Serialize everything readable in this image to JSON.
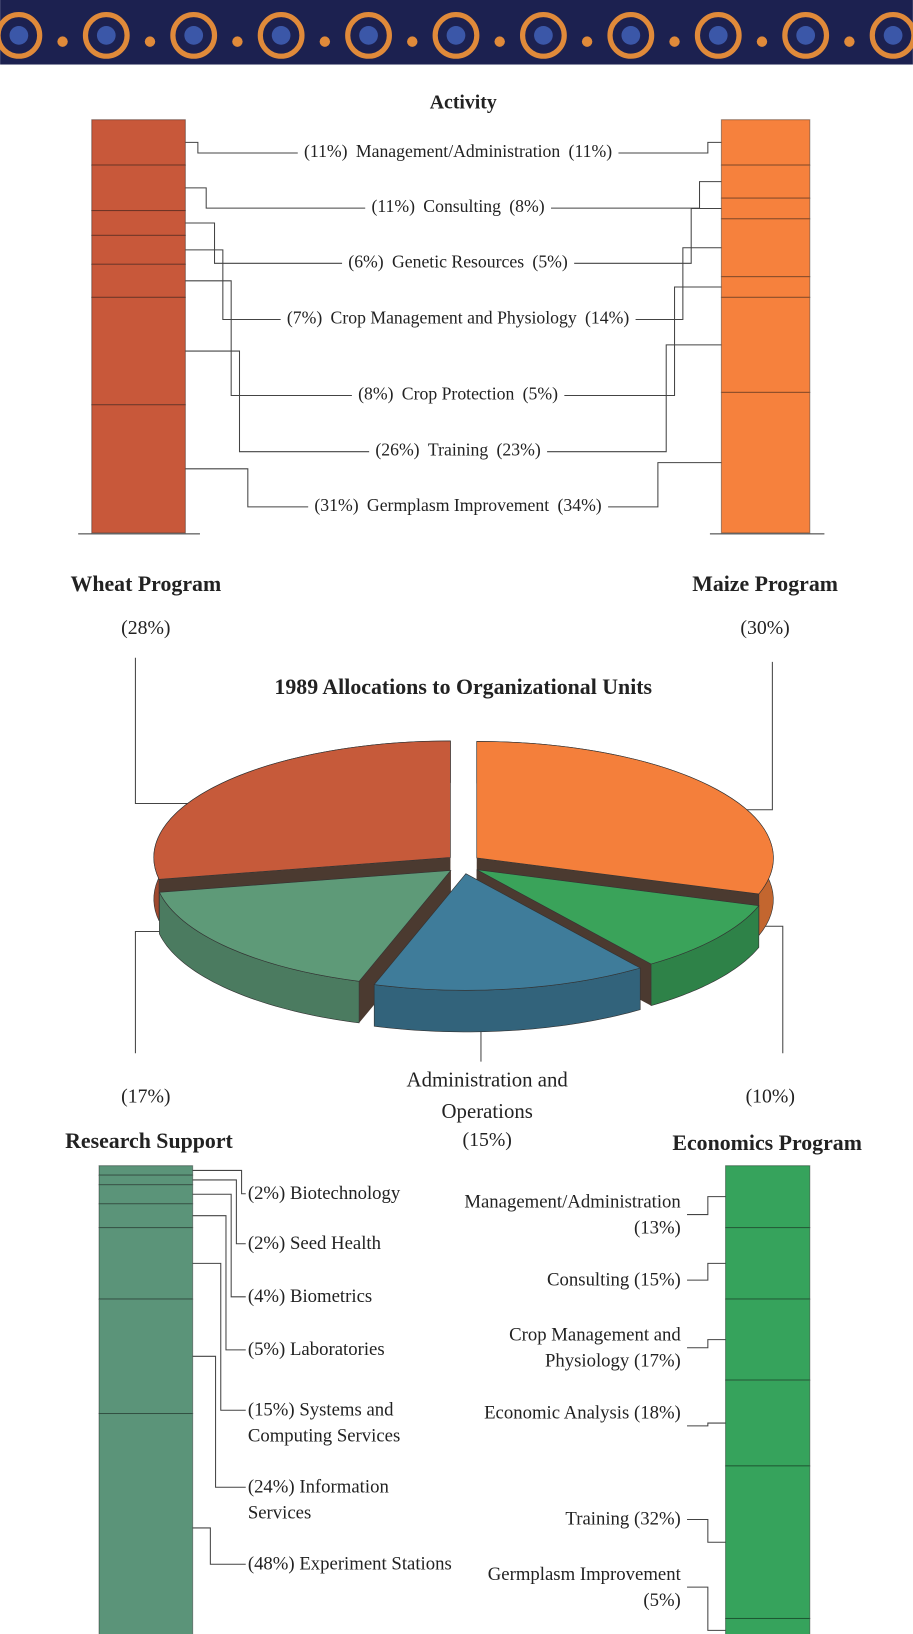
{
  "chart_data": [
    {
      "type": "stacked_column",
      "title": "Activity",
      "categories": [
        "Management/Administration",
        "Consulting",
        "Genetic Resources",
        "Crop Management and Physiology",
        "Crop Protection",
        "Training",
        "Germplasm Improvement"
      ],
      "series": [
        {
          "color": "#c8583a",
          "values": [
            11,
            11,
            6,
            7,
            8,
            26,
            31
          ],
          "value_labels": [
            "(11%)",
            "(11%)",
            "(6%)",
            "(7%)",
            "(8%)",
            "(26%)",
            "(31%)"
          ]
        },
        {
          "color": "#f6813d",
          "values": [
            11,
            8,
            5,
            14,
            5,
            23,
            34
          ],
          "value_labels": [
            "(11%)",
            "(8%)",
            "(5%)",
            "(14%)",
            "(5%)",
            "(23%)",
            "(34%)"
          ]
        }
      ]
    },
    {
      "type": "pie",
      "title": "1989 Allocations to Organizational Units",
      "categories": [
        "Maize Program",
        "Economics Program",
        "Administration and Operations",
        "Research Support",
        "Wheat Program"
      ],
      "values": [
        30,
        10,
        15,
        17,
        28
      ],
      "value_labels": [
        "(30%)",
        "(10%)",
        "(15%)",
        "(17%)",
        "(28%)"
      ],
      "colors": [
        "#f47f3b",
        "#3aa35a",
        "#3f7c9a",
        "#5e9a78",
        "#c65a3a"
      ]
    },
    {
      "type": "stacked_column",
      "categories": [
        "Biotechnology",
        "Seed Health",
        "Biometrics",
        "Laboratories",
        "Systems and Computing Services",
        "Information Services",
        "Experiment Stations"
      ],
      "values": [
        2,
        2,
        4,
        5,
        15,
        24,
        48
      ],
      "value_labels": [
        "(2%)",
        "(2%)",
        "(4%)",
        "(5%)",
        "(15%)",
        "(24%)",
        "(48%)"
      ],
      "color": "#5b9479"
    },
    {
      "type": "stacked_column",
      "categories": [
        "Management/Administration",
        "Consulting",
        "Crop Management and Physiology",
        "Economic Analysis",
        "Training",
        "Germplasm Improvement"
      ],
      "values": [
        13,
        15,
        17,
        18,
        32,
        5
      ],
      "value_labels": [
        "(13%)",
        "(15%)",
        "(17%)",
        "(18%)",
        "(32%)",
        "(5%)"
      ],
      "color": "#36a35c"
    }
  ]
}
